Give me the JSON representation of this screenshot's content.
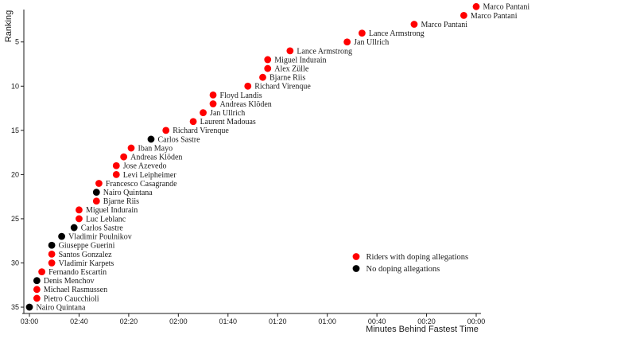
{
  "page": {
    "background": "#ffffff",
    "text_color": "#1a1a1a"
  },
  "chart_data": {
    "type": "scatter",
    "title": "",
    "xlabel": "Minutes Behind Fastest Time",
    "ylabel": "Ranking",
    "x_axis": {
      "direction": "reversed, 00:00 at right",
      "ticks": [
        {
          "label": "03:00",
          "seconds": 180
        },
        {
          "label": "02:40",
          "seconds": 160
        },
        {
          "label": "02:20",
          "seconds": 140
        },
        {
          "label": "02:00",
          "seconds": 120
        },
        {
          "label": "01:40",
          "seconds": 100
        },
        {
          "label": "01:20",
          "seconds": 80
        },
        {
          "label": "01:00",
          "seconds": 60
        },
        {
          "label": "00:40",
          "seconds": 40
        },
        {
          "label": "00:20",
          "seconds": 20
        },
        {
          "label": "00:00",
          "seconds": 0
        }
      ]
    },
    "y_axis": {
      "direction": "rank 1 at top",
      "ticks": [
        5,
        10,
        15,
        20,
        25,
        30,
        35
      ],
      "range": [
        1,
        35
      ]
    },
    "legend": {
      "items": [
        {
          "key": "doping",
          "label": "Riders with doping allegations",
          "color": "#ff0000"
        },
        {
          "key": "clean",
          "label": "No doping allegations",
          "color": "#000000"
        }
      ]
    },
    "colors": {
      "doping": "#ff0000",
      "clean": "#000000"
    },
    "points": [
      {
        "rank": 1,
        "name": "Marco Pantani",
        "behind": "00:00",
        "behind_seconds": 0,
        "doping": true
      },
      {
        "rank": 2,
        "name": "Marco Pantani",
        "behind": "00:05",
        "behind_seconds": 5,
        "doping": true
      },
      {
        "rank": 3,
        "name": "Marco Pantani",
        "behind": "00:25",
        "behind_seconds": 25,
        "doping": true
      },
      {
        "rank": 4,
        "name": "Lance Armstrong",
        "behind": "00:46",
        "behind_seconds": 46,
        "doping": true
      },
      {
        "rank": 5,
        "name": "Jan Ullrich",
        "behind": "00:52",
        "behind_seconds": 52,
        "doping": true
      },
      {
        "rank": 6,
        "name": "Lance Armstrong",
        "behind": "01:15",
        "behind_seconds": 75,
        "doping": true
      },
      {
        "rank": 7,
        "name": "Miguel Indurain",
        "behind": "01:24",
        "behind_seconds": 84,
        "doping": true
      },
      {
        "rank": 8,
        "name": "Alex Zülle",
        "behind": "01:24",
        "behind_seconds": 84,
        "doping": true
      },
      {
        "rank": 9,
        "name": "Bjarne Riis",
        "behind": "01:26",
        "behind_seconds": 86,
        "doping": true
      },
      {
        "rank": 10,
        "name": "Richard Virenque",
        "behind": "01:32",
        "behind_seconds": 92,
        "doping": true
      },
      {
        "rank": 11,
        "name": "Floyd Landis",
        "behind": "01:46",
        "behind_seconds": 106,
        "doping": true
      },
      {
        "rank": 12,
        "name": "Andreas Klöden",
        "behind": "01:46",
        "behind_seconds": 106,
        "doping": true
      },
      {
        "rank": 13,
        "name": "Jan Ullrich",
        "behind": "01:50",
        "behind_seconds": 110,
        "doping": true
      },
      {
        "rank": 14,
        "name": "Laurent Madouas",
        "behind": "01:54",
        "behind_seconds": 114,
        "doping": true
      },
      {
        "rank": 15,
        "name": "Richard Virenque",
        "behind": "02:05",
        "behind_seconds": 125,
        "doping": true
      },
      {
        "rank": 16,
        "name": "Carlos Sastre",
        "behind": "02:11",
        "behind_seconds": 131,
        "doping": false
      },
      {
        "rank": 17,
        "name": "Iban Mayo",
        "behind": "02:19",
        "behind_seconds": 139,
        "doping": true
      },
      {
        "rank": 18,
        "name": "Andreas Klöden",
        "behind": "02:22",
        "behind_seconds": 142,
        "doping": true
      },
      {
        "rank": 19,
        "name": "Jose Azevedo",
        "behind": "02:25",
        "behind_seconds": 145,
        "doping": true
      },
      {
        "rank": 20,
        "name": "Levi Leipheimer",
        "behind": "02:25",
        "behind_seconds": 145,
        "doping": true
      },
      {
        "rank": 21,
        "name": "Francesco Casagrande",
        "behind": "02:32",
        "behind_seconds": 152,
        "doping": true
      },
      {
        "rank": 22,
        "name": "Nairo Quintana",
        "behind": "02:33",
        "behind_seconds": 153,
        "doping": false
      },
      {
        "rank": 23,
        "name": "Bjarne Riis",
        "behind": "02:33",
        "behind_seconds": 153,
        "doping": true
      },
      {
        "rank": 24,
        "name": "Miguel Indurain",
        "behind": "02:40",
        "behind_seconds": 160,
        "doping": true
      },
      {
        "rank": 25,
        "name": "Luc Leblanc",
        "behind": "02:40",
        "behind_seconds": 160,
        "doping": true
      },
      {
        "rank": 26,
        "name": "Carlos Sastre",
        "behind": "02:42",
        "behind_seconds": 162,
        "doping": false
      },
      {
        "rank": 27,
        "name": "Vladimir Poulnikov",
        "behind": "02:47",
        "behind_seconds": 167,
        "doping": false
      },
      {
        "rank": 28,
        "name": "Giuseppe Guerini",
        "behind": "02:51",
        "behind_seconds": 171,
        "doping": false
      },
      {
        "rank": 29,
        "name": "Santos Gonzalez",
        "behind": "02:51",
        "behind_seconds": 171,
        "doping": true
      },
      {
        "rank": 30,
        "name": "Vladimir Karpets",
        "behind": "02:51",
        "behind_seconds": 171,
        "doping": true
      },
      {
        "rank": 31,
        "name": "Fernando Escartin",
        "behind": "02:55",
        "behind_seconds": 175,
        "doping": true
      },
      {
        "rank": 32,
        "name": "Denis Menchov",
        "behind": "02:57",
        "behind_seconds": 177,
        "doping": false
      },
      {
        "rank": 33,
        "name": "Michael Rasmussen",
        "behind": "02:57",
        "behind_seconds": 177,
        "doping": true
      },
      {
        "rank": 34,
        "name": "Pietro Caucchioli",
        "behind": "02:57",
        "behind_seconds": 177,
        "doping": true
      },
      {
        "rank": 35,
        "name": "Nairo Quintana",
        "behind": "03:00",
        "behind_seconds": 180,
        "doping": false
      }
    ]
  }
}
